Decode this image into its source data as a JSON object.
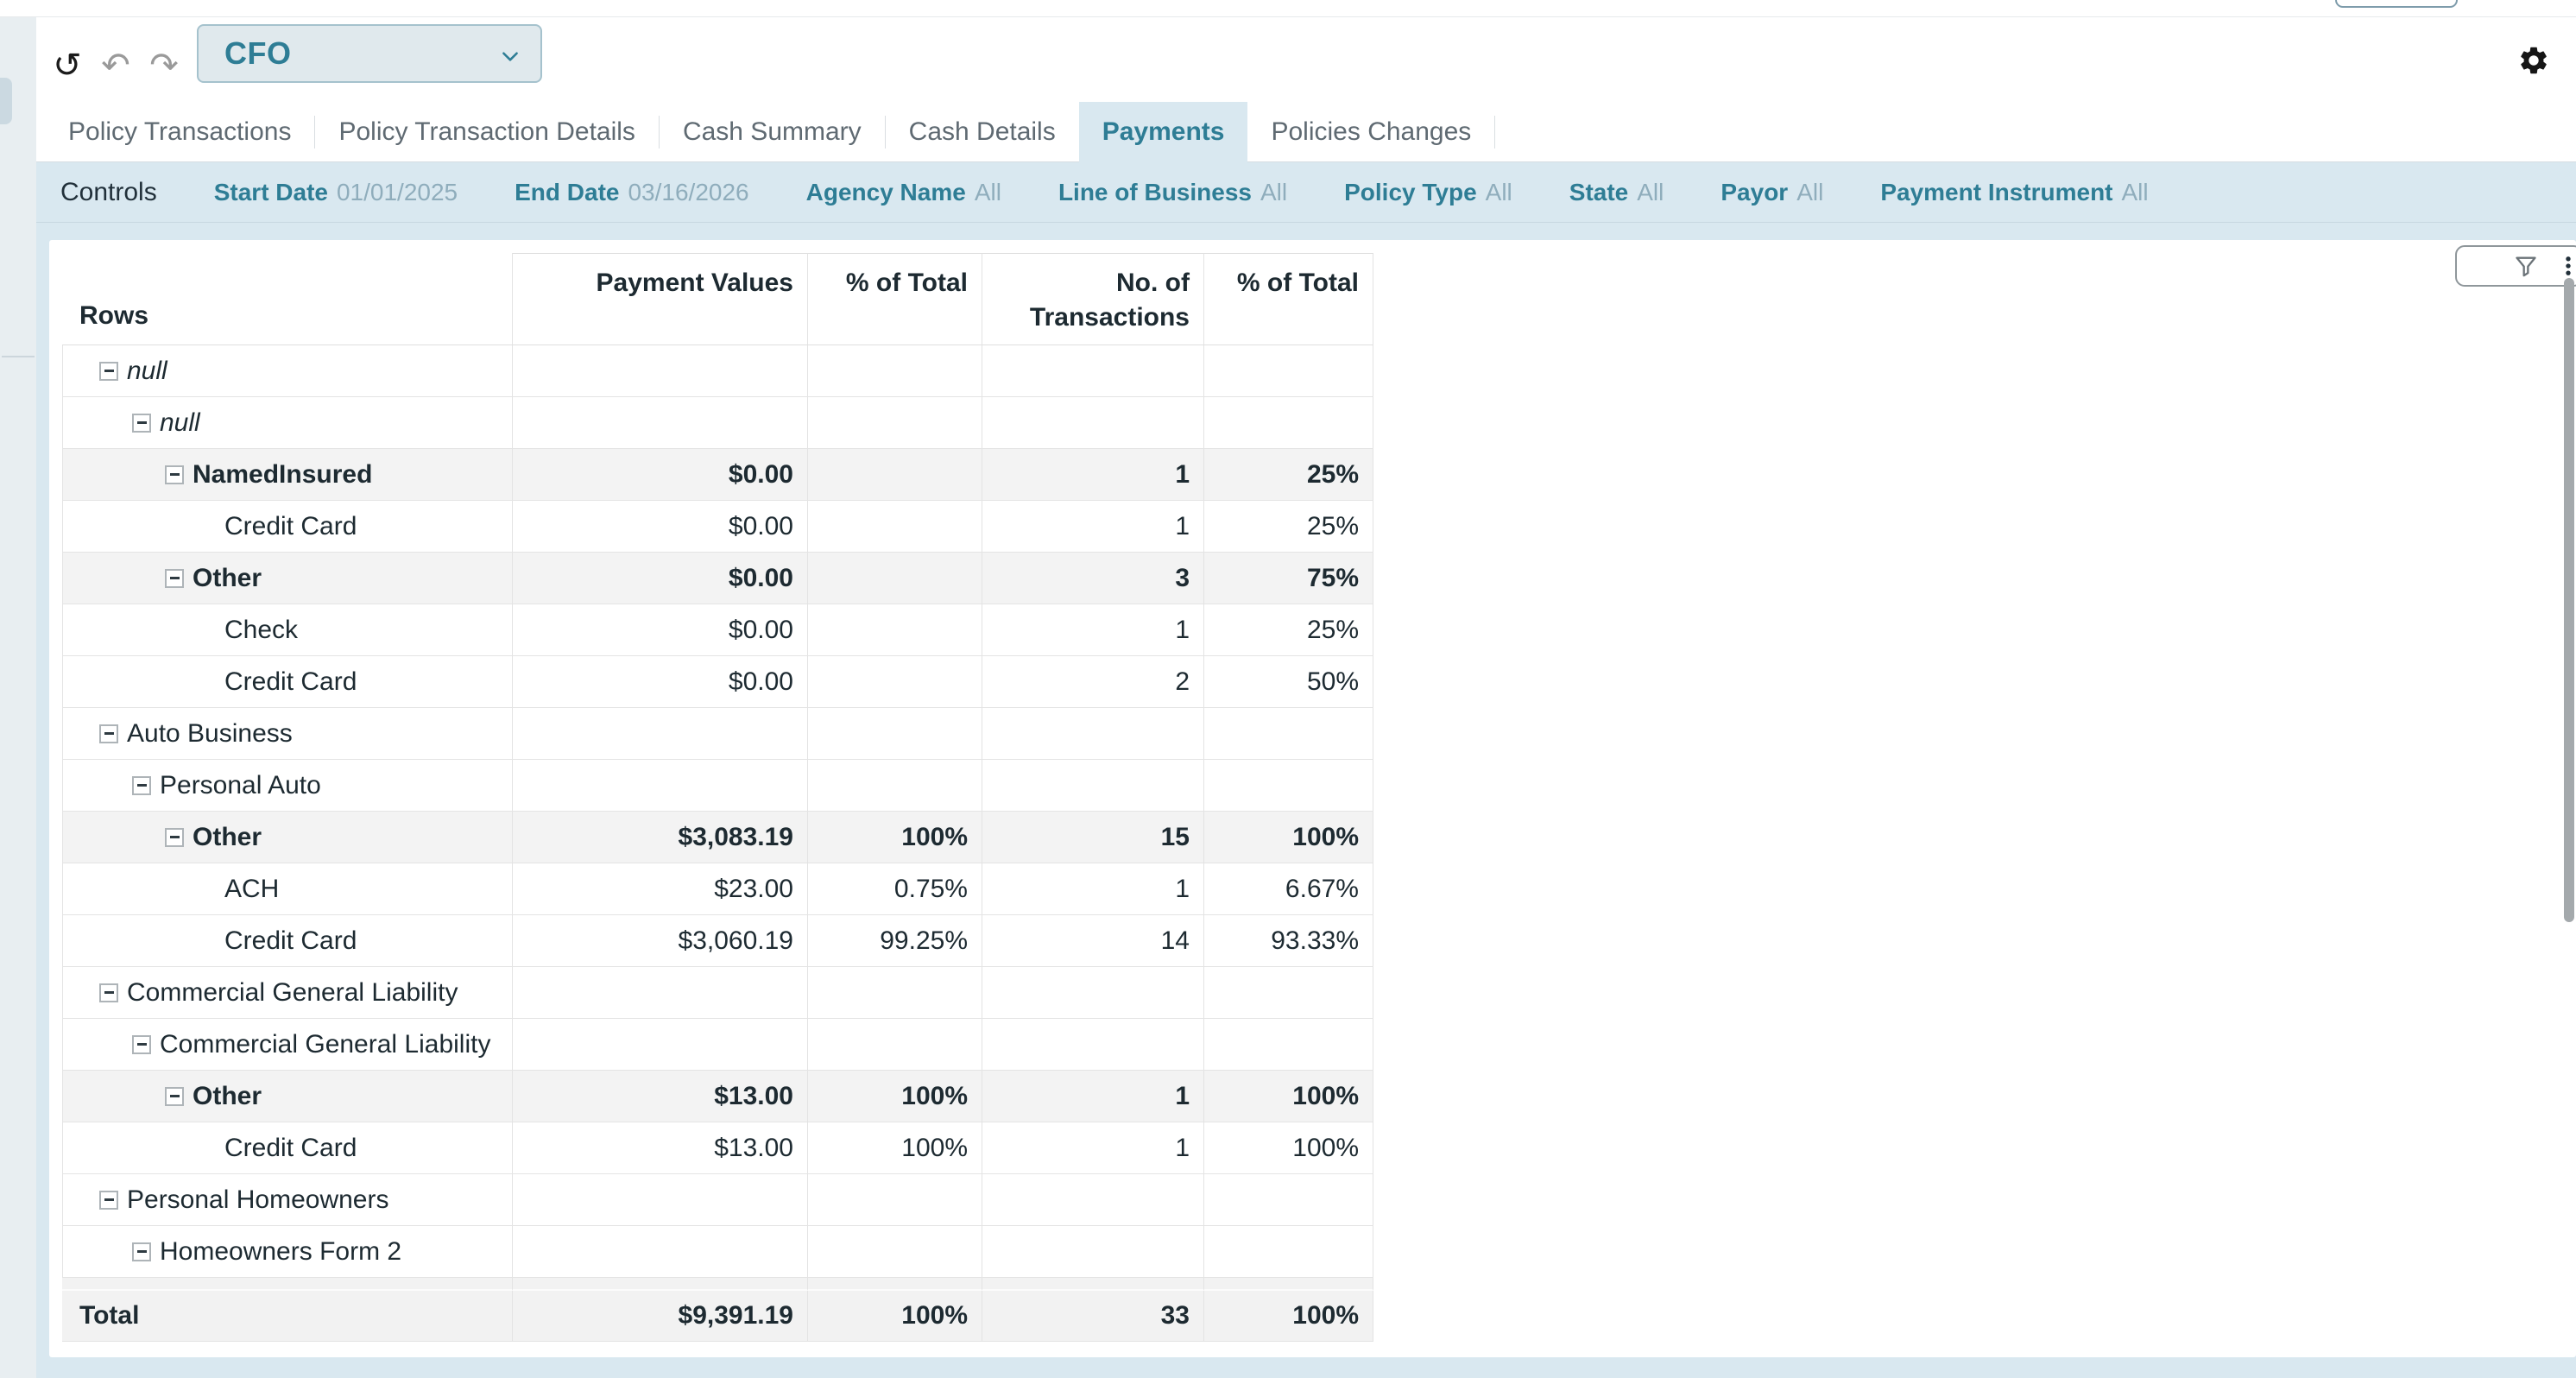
{
  "colors": {
    "accent_teal": "#2e7d95",
    "controls_bg": "#d9e8f0",
    "muted_value": "#8fadbc",
    "table_text": "#1d2a31",
    "shaded_row": "#f3f3f3"
  },
  "top_bar": {
    "partial_button": ""
  },
  "toolbar": {
    "view_selector_value": "CFO",
    "icons": {
      "reset": "↺",
      "undo": "↶",
      "redo": "↷",
      "settings": "gear-icon",
      "view_chevron": "chevron-down-icon"
    }
  },
  "tabs": {
    "items": [
      {
        "label": "Policy Transactions",
        "active": false
      },
      {
        "label": "Policy Transaction Details",
        "active": false
      },
      {
        "label": "Cash Summary",
        "active": false
      },
      {
        "label": "Cash Details",
        "active": false
      },
      {
        "label": "Payments",
        "active": true
      },
      {
        "label": "Policies Changes",
        "active": false
      }
    ]
  },
  "controls": {
    "title": "Controls",
    "filters": [
      {
        "label": "Start Date",
        "value": "01/01/2025"
      },
      {
        "label": "End Date",
        "value": "03/16/2026"
      },
      {
        "label": "Agency Name",
        "value": "All"
      },
      {
        "label": "Line of Business",
        "value": "All"
      },
      {
        "label": "Policy Type",
        "value": "All"
      },
      {
        "label": "State",
        "value": "All"
      },
      {
        "label": "Payor",
        "value": "All"
      },
      {
        "label": "Payment Instrument",
        "value": "All"
      }
    ]
  },
  "pivot": {
    "corner_label": "Rows",
    "columns": [
      "Payment Values",
      "% of Total",
      "No. of Transactions",
      "% of Total"
    ],
    "rows": [
      {
        "label": "null",
        "level": 0,
        "collapsible": true,
        "italic": true,
        "bold": false,
        "shaded": false,
        "values": [
          "",
          "",
          "",
          ""
        ]
      },
      {
        "label": "null",
        "level": 1,
        "collapsible": true,
        "italic": true,
        "bold": false,
        "shaded": false,
        "values": [
          "",
          "",
          "",
          ""
        ]
      },
      {
        "label": "NamedInsured",
        "level": 2,
        "collapsible": true,
        "italic": false,
        "bold": true,
        "shaded": true,
        "values": [
          "$0.00",
          "",
          "1",
          "25%"
        ]
      },
      {
        "label": "Credit Card",
        "level": 3,
        "collapsible": false,
        "italic": false,
        "bold": false,
        "shaded": false,
        "values": [
          "$0.00",
          "",
          "1",
          "25%"
        ]
      },
      {
        "label": "Other",
        "level": 2,
        "collapsible": true,
        "italic": false,
        "bold": true,
        "shaded": true,
        "values": [
          "$0.00",
          "",
          "3",
          "75%"
        ]
      },
      {
        "label": "Check",
        "level": 3,
        "collapsible": false,
        "italic": false,
        "bold": false,
        "shaded": false,
        "values": [
          "$0.00",
          "",
          "1",
          "25%"
        ]
      },
      {
        "label": "Credit Card",
        "level": 3,
        "collapsible": false,
        "italic": false,
        "bold": false,
        "shaded": false,
        "values": [
          "$0.00",
          "",
          "2",
          "50%"
        ]
      },
      {
        "label": "Auto Business",
        "level": 0,
        "collapsible": true,
        "italic": false,
        "bold": false,
        "shaded": false,
        "values": [
          "",
          "",
          "",
          ""
        ]
      },
      {
        "label": "Personal Auto",
        "level": 1,
        "collapsible": true,
        "italic": false,
        "bold": false,
        "shaded": false,
        "values": [
          "",
          "",
          "",
          ""
        ]
      },
      {
        "label": "Other",
        "level": 2,
        "collapsible": true,
        "italic": false,
        "bold": true,
        "shaded": true,
        "values": [
          "$3,083.19",
          "100%",
          "15",
          "100%"
        ]
      },
      {
        "label": "ACH",
        "level": 3,
        "collapsible": false,
        "italic": false,
        "bold": false,
        "shaded": false,
        "values": [
          "$23.00",
          "0.75%",
          "1",
          "6.67%"
        ]
      },
      {
        "label": "Credit Card",
        "level": 3,
        "collapsible": false,
        "italic": false,
        "bold": false,
        "shaded": false,
        "values": [
          "$3,060.19",
          "99.25%",
          "14",
          "93.33%"
        ]
      },
      {
        "label": "Commercial General Liability",
        "level": 0,
        "collapsible": true,
        "italic": false,
        "bold": false,
        "shaded": false,
        "values": [
          "",
          "",
          "",
          ""
        ]
      },
      {
        "label": "Commercial General Liability",
        "level": 1,
        "collapsible": true,
        "italic": false,
        "bold": false,
        "shaded": false,
        "values": [
          "",
          "",
          "",
          ""
        ]
      },
      {
        "label": "Other",
        "level": 2,
        "collapsible": true,
        "italic": false,
        "bold": true,
        "shaded": true,
        "values": [
          "$13.00",
          "100%",
          "1",
          "100%"
        ]
      },
      {
        "label": "Credit Card",
        "level": 3,
        "collapsible": false,
        "italic": false,
        "bold": false,
        "shaded": false,
        "values": [
          "$13.00",
          "100%",
          "1",
          "100%"
        ]
      },
      {
        "label": "Personal Homeowners",
        "level": 0,
        "collapsible": true,
        "italic": false,
        "bold": false,
        "shaded": false,
        "values": [
          "",
          "",
          "",
          ""
        ]
      },
      {
        "label": "Homeowners Form 2",
        "level": 1,
        "collapsible": true,
        "italic": false,
        "bold": false,
        "shaded": false,
        "values": [
          "",
          "",
          "",
          ""
        ]
      }
    ],
    "total": {
      "label": "Total",
      "values": [
        "$9,391.19",
        "100%",
        "33",
        "100%"
      ]
    }
  },
  "visual_toolbar": {
    "icons": [
      "maximize-icon",
      "filter-icon",
      "menu-icon"
    ]
  }
}
